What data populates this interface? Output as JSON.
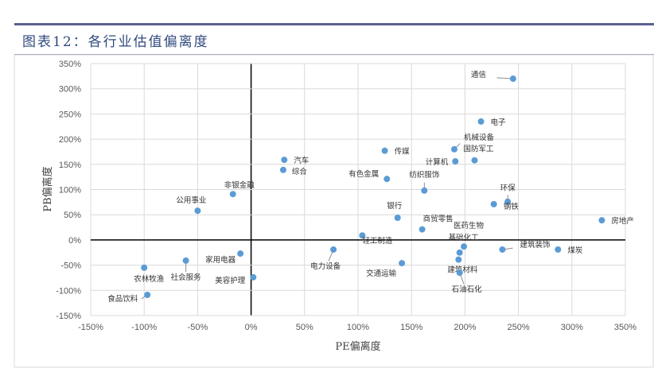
{
  "title": "图表12：各行业估值偏离度",
  "chart_data": {
    "type": "scatter",
    "title": "图表12：各行业估值偏离度",
    "xlabel": "PE偏离度",
    "ylabel": "PB偏离度",
    "xlim": [
      -150,
      350
    ],
    "ylim": [
      -150,
      350
    ],
    "xticks": [
      -150,
      -100,
      -50,
      0,
      50,
      100,
      150,
      200,
      250,
      300,
      350
    ],
    "yticks": [
      -150,
      -100,
      -50,
      0,
      50,
      100,
      150,
      200,
      250,
      300,
      350
    ],
    "tick_suffix": "%",
    "grid": true,
    "point_color": "#5b9bd5",
    "points": [
      {
        "label": "通信",
        "x": 245,
        "y": 320
      },
      {
        "label": "电子",
        "x": 215,
        "y": 235
      },
      {
        "label": "传媒",
        "x": 125,
        "y": 177
      },
      {
        "label": "机械设备",
        "x": 190,
        "y": 180
      },
      {
        "label": "计算机",
        "x": 191,
        "y": 156
      },
      {
        "label": "国防军工",
        "x": 209,
        "y": 158
      },
      {
        "label": "有色金属",
        "x": 127,
        "y": 121
      },
      {
        "label": "纺织服饰",
        "x": 162,
        "y": 98
      },
      {
        "label": "环保",
        "x": 240,
        "y": 76
      },
      {
        "label": "钢铁",
        "x": 227,
        "y": 71
      },
      {
        "label": "银行",
        "x": 137,
        "y": 44
      },
      {
        "label": "房地产",
        "x": 328,
        "y": 39
      },
      {
        "label": "商贸零售",
        "x": 160,
        "y": 21
      },
      {
        "label": "轻工制造",
        "x": 104,
        "y": 9
      },
      {
        "label": "医药生物",
        "x": 199,
        "y": -13
      },
      {
        "label": "基础化工",
        "x": 195,
        "y": -25
      },
      {
        "label": "建筑材料",
        "x": 194,
        "y": -39
      },
      {
        "label": "石油石化",
        "x": 195,
        "y": -65
      },
      {
        "label": "建筑装饰",
        "x": 235,
        "y": -19
      },
      {
        "label": "煤炭",
        "x": 287,
        "y": -19
      },
      {
        "label": "电力设备",
        "x": 77,
        "y": -19
      },
      {
        "label": "交通运输",
        "x": 141,
        "y": -46
      },
      {
        "label": "汽车",
        "x": 31,
        "y": 159
      },
      {
        "label": "综合",
        "x": 30,
        "y": 139
      },
      {
        "label": "非银金融",
        "x": -17,
        "y": 91
      },
      {
        "label": "公用事业",
        "x": -50,
        "y": 58
      },
      {
        "label": "家用电器",
        "x": -10,
        "y": -27
      },
      {
        "label": "社会服务",
        "x": -61,
        "y": -41
      },
      {
        "label": "农林牧渔",
        "x": -100,
        "y": -55
      },
      {
        "label": "美容护理",
        "x": 2,
        "y": -74
      },
      {
        "label": "食品饮料",
        "x": -97,
        "y": -109
      }
    ]
  }
}
